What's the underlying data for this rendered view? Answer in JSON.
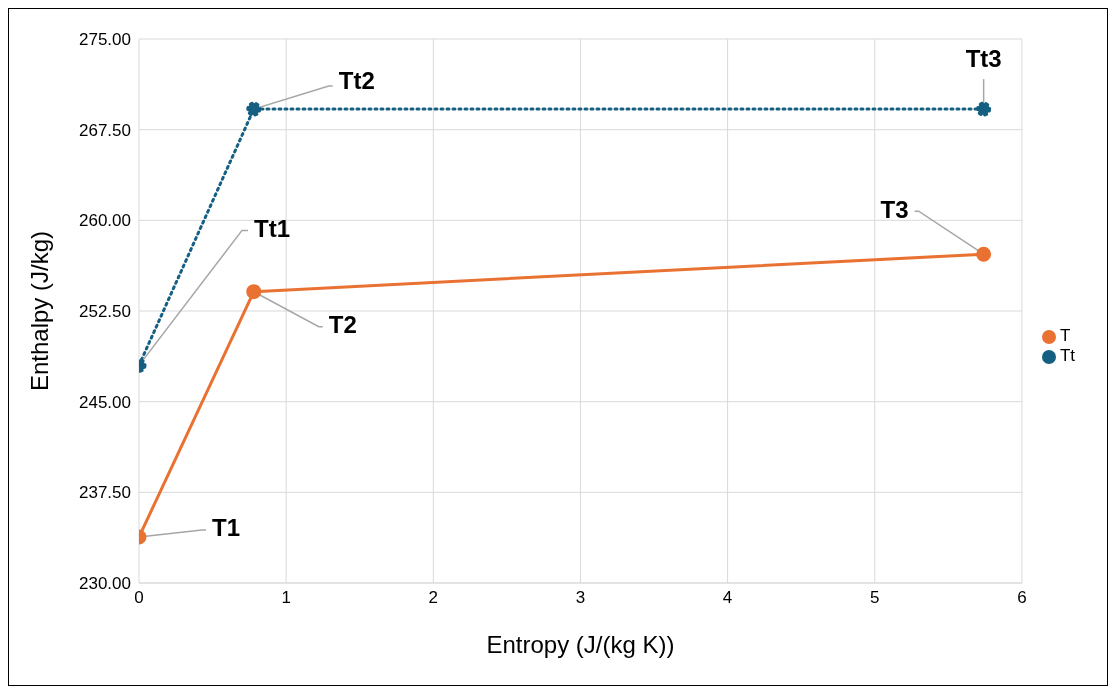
{
  "chart_data": {
    "type": "line",
    "xlabel": "Entropy (J/(kg K))",
    "ylabel": "Enthalpy (J/kg)",
    "x": [
      0,
      0.78,
      5.74
    ],
    "series": [
      {
        "name": "Tt",
        "color": "#156082",
        "values": [
          248.0,
          269.2,
          269.2
        ],
        "line_style": "dotted"
      },
      {
        "name": "T",
        "color": "#e97132",
        "values": [
          233.8,
          254.1,
          257.2
        ],
        "line_style": "solid"
      }
    ],
    "xlim": [
      0,
      6
    ],
    "xticks": [
      0,
      1,
      2,
      3,
      4,
      5,
      6
    ],
    "ylim": [
      230,
      275
    ],
    "yticks": [
      {
        "value": 230,
        "label": "230.00"
      },
      {
        "value": 237.5,
        "label": "237.50"
      },
      {
        "value": 245,
        "label": "245.00"
      },
      {
        "value": 252.5,
        "label": "252.50"
      },
      {
        "value": 260,
        "label": "260.00"
      },
      {
        "value": 267.5,
        "label": "267.50"
      },
      {
        "value": 275,
        "label": "275.00"
      }
    ],
    "annotations": [
      {
        "text": "Tt1",
        "x": 0,
        "y": 248.0
      },
      {
        "text": "Tt2",
        "x": 0.78,
        "y": 269.2
      },
      {
        "text": "Tt3",
        "x": 5.74,
        "y": 269.2
      },
      {
        "text": "T1",
        "x": 0,
        "y": 233.8
      },
      {
        "text": "T2",
        "x": 0.78,
        "y": 254.1
      },
      {
        "text": "T3",
        "x": 5.74,
        "y": 257.2
      }
    ],
    "grid": true,
    "legend": "right",
    "marker": "circle"
  }
}
